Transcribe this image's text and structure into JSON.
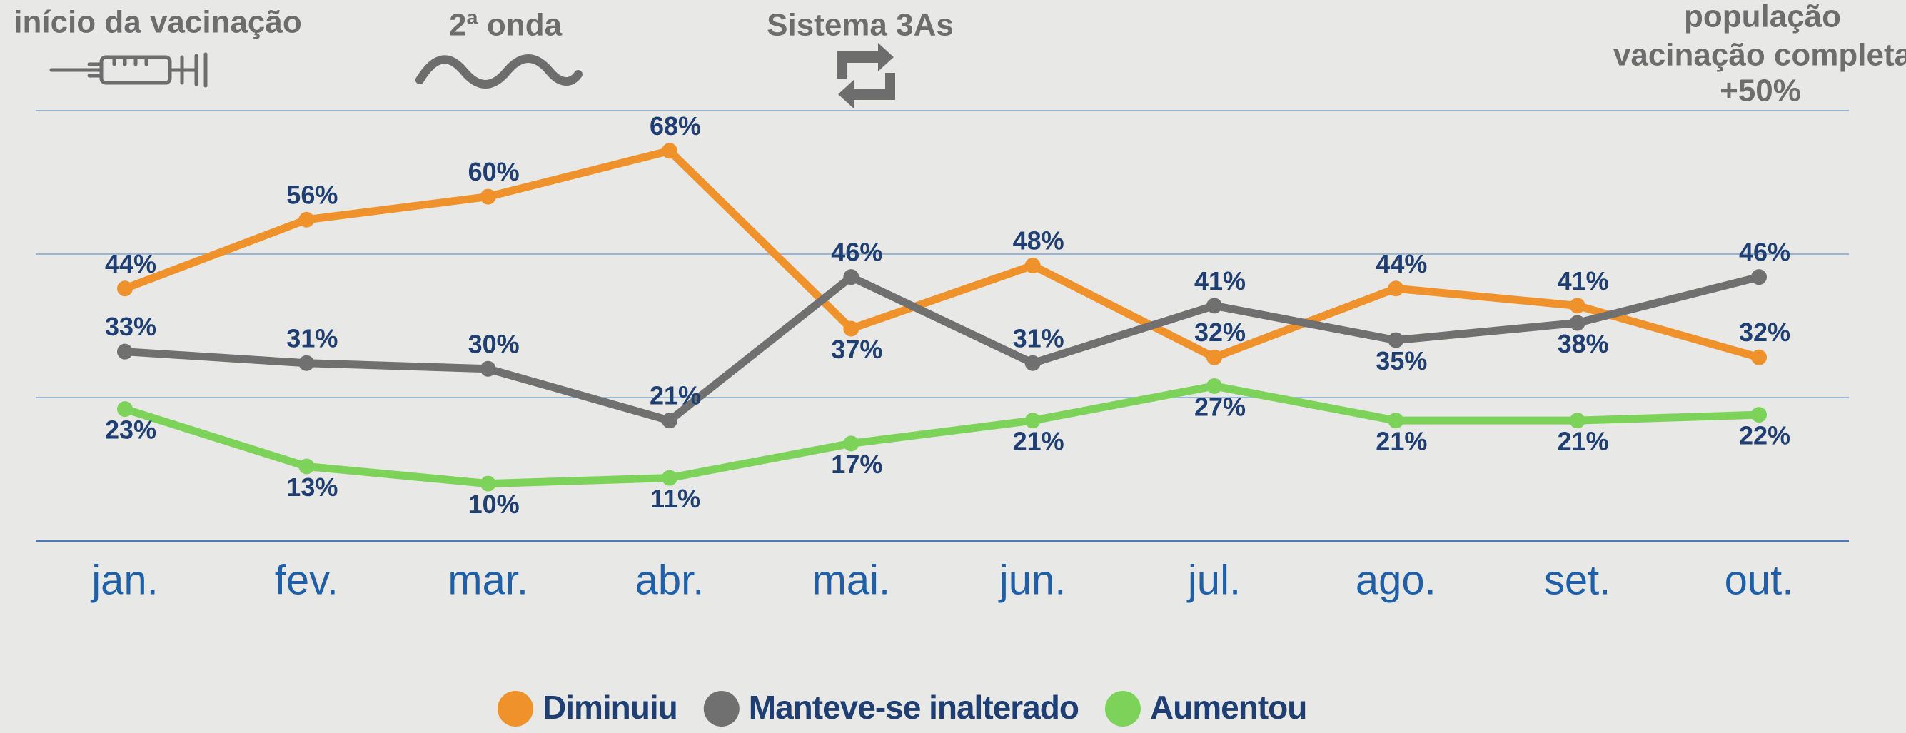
{
  "chart_data": {
    "type": "line",
    "annotations": [
      {
        "lines": [
          "início da vacinação"
        ]
      },
      {
        "lines": [
          "2ª onda"
        ]
      },
      {
        "lines": [
          "Sistema 3As"
        ]
      },
      {
        "lines": [
          "população",
          "vacinação completa",
          "+50%"
        ]
      }
    ],
    "categories": [
      "jan.",
      "fev.",
      "mar.",
      "abr.",
      "mai.",
      "jun.",
      "jul.",
      "ago.",
      "set.",
      "out."
    ],
    "series": [
      {
        "name": "Diminuiu",
        "color": "#f0922b",
        "values": [
          44,
          56,
          60,
          68,
          37,
          48,
          32,
          44,
          41,
          32
        ],
        "value_labels": [
          "44%",
          "56%",
          "60%",
          "68%",
          "37%",
          "48%",
          "32%",
          "44%",
          "41%",
          "32%"
        ]
      },
      {
        "name": "Manteve-se inalterado",
        "color": "#707070",
        "values": [
          33,
          31,
          30,
          21,
          46,
          31,
          41,
          35,
          38,
          46
        ],
        "value_labels": [
          "33%",
          "31%",
          "30%",
          "21%",
          "46%",
          "31%",
          "41%",
          "35%",
          "38%",
          "46%"
        ]
      },
      {
        "name": "Aumentou",
        "color": "#7dd35a",
        "values": [
          23,
          13,
          10,
          11,
          17,
          21,
          27,
          21,
          21,
          22
        ],
        "value_labels": [
          "23%",
          "13%",
          "10%",
          "11%",
          "17%",
          "21%",
          "27%",
          "21%",
          "21%",
          "22%"
        ]
      }
    ],
    "ylim": [
      0,
      75
    ],
    "yticks": [
      0,
      25,
      50,
      75
    ],
    "grid": true,
    "legend": "bottom"
  }
}
